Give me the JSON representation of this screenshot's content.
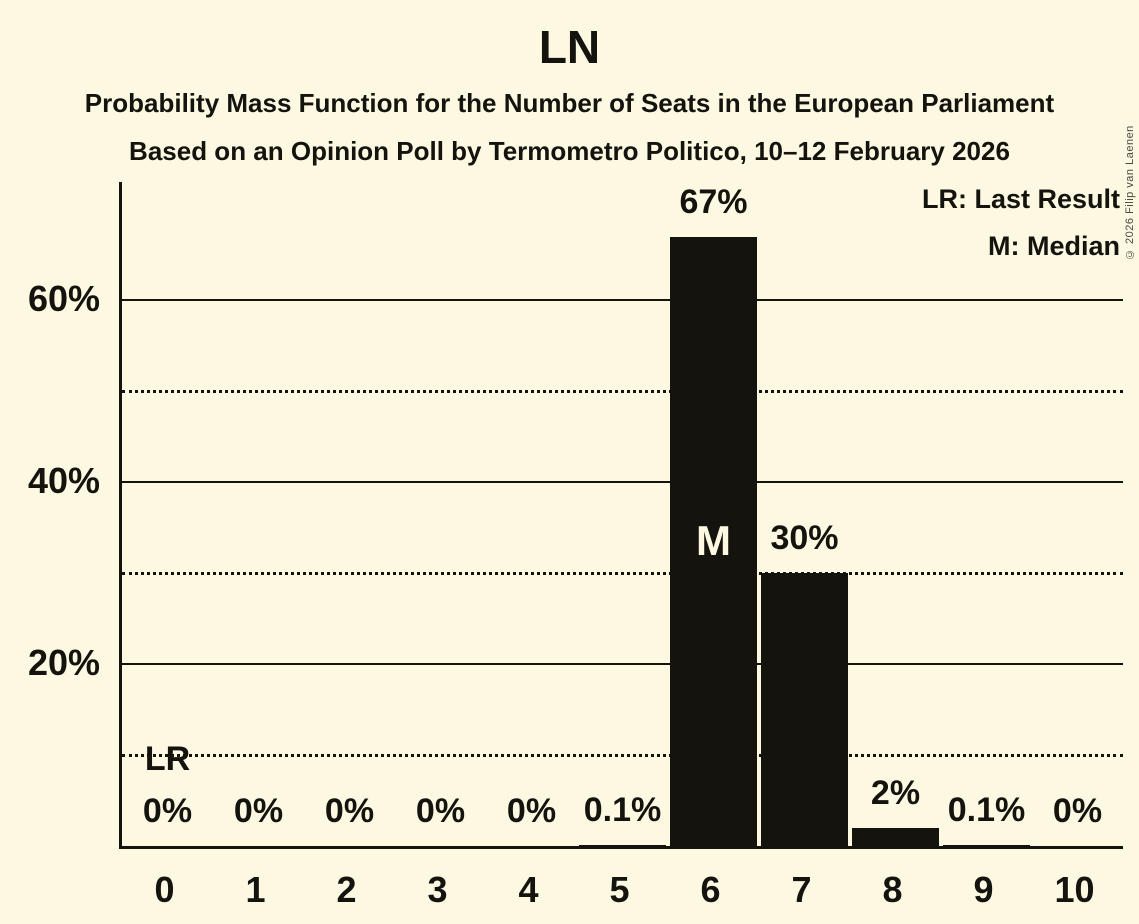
{
  "title": "LN",
  "subtitle": "Probability Mass Function for the Number of Seats in the European Parliament",
  "poll_info": "Based on an Opinion Poll by Termometro Politico, 10–12 February 2026",
  "copyright": "© 2026 Filip van Laenen",
  "legend": {
    "last_result": "LR: Last Result",
    "median": "M: Median"
  },
  "colors": {
    "background": "#FCF8E1",
    "ink": "#14130E",
    "bar": "#14130E",
    "inside_bar_label": "#FCF8E1"
  },
  "chart_data": {
    "type": "bar",
    "title": "LN",
    "xlabel": "",
    "ylabel": "",
    "categories": [
      "0",
      "1",
      "2",
      "3",
      "4",
      "5",
      "6",
      "7",
      "8",
      "9",
      "10"
    ],
    "values": [
      0,
      0,
      0,
      0,
      0,
      0.1,
      67,
      30,
      2,
      0.1,
      0
    ],
    "value_labels": [
      "0%",
      "0%",
      "0%",
      "0%",
      "0%",
      "0.1%",
      "67%",
      "30%",
      "2%",
      "0.1%",
      "0%"
    ],
    "ylim": [
      0,
      73
    ],
    "y_ticks": [
      {
        "value": 20,
        "label": "20%"
      },
      {
        "value": 40,
        "label": "40%"
      },
      {
        "value": 60,
        "label": "60%"
      }
    ],
    "y_gridlines_solid": [
      20,
      40,
      60
    ],
    "y_gridlines_dotted": [
      10,
      30,
      50
    ],
    "grid": "horizontal",
    "legend_position": "top-right",
    "annotations": [
      {
        "text": "LR",
        "category": "0",
        "meaning": "Last Result",
        "placement": "above-bar"
      },
      {
        "text": "M",
        "category": "6",
        "meaning": "Median",
        "placement": "inside-bar"
      }
    ]
  }
}
